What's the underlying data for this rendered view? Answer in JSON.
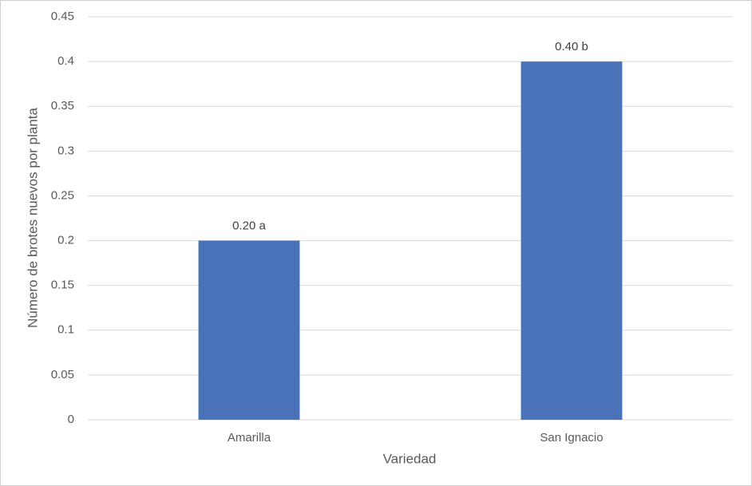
{
  "chart_data": {
    "type": "bar",
    "x_label": "Variedad",
    "y_label": "Número de brotes nuevos por planta",
    "categories": [
      "Amarilla",
      "San Ignacio"
    ],
    "values": [
      0.2,
      0.4
    ],
    "value_labels": [
      "0.20 a",
      "0.40 b"
    ],
    "color": "#4a72b8",
    "ylim": [
      0,
      0.45
    ],
    "yticks": [
      0,
      0.05,
      0.1,
      0.15,
      0.2,
      0.25,
      0.3,
      0.35,
      0.4,
      0.45
    ],
    "grid": true
  }
}
